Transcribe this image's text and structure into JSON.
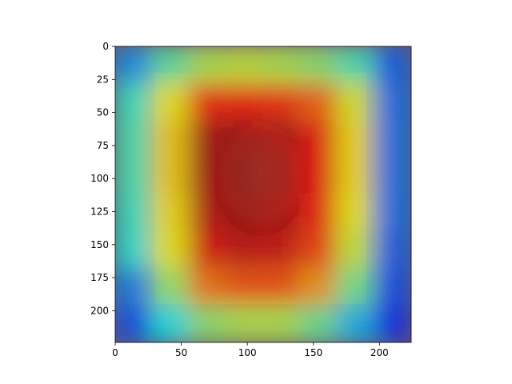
{
  "chart_data": {
    "type": "heatmap",
    "title": "",
    "xlabel": "",
    "ylabel": "",
    "xlim": [
      0,
      224
    ],
    "ylim": [
      224,
      0
    ],
    "x_ticks": [
      0,
      50,
      100,
      150,
      200
    ],
    "y_ticks": [
      0,
      25,
      50,
      75,
      100,
      125,
      150,
      175,
      200
    ],
    "x_tick_labels": [
      "0",
      "50",
      "100",
      "150",
      "200"
    ],
    "y_tick_labels": [
      "0",
      "25",
      "50",
      "75",
      "100",
      "125",
      "150",
      "175",
      "200"
    ],
    "grid": false,
    "colormap": "jet",
    "overlay": "attention heatmap over a portrait photograph of a smiling man",
    "activation_grid": [
      [
        0.28,
        0.46,
        0.56,
        0.58,
        0.56,
        0.52,
        0.44,
        0.22
      ],
      [
        0.42,
        0.62,
        0.85,
        0.86,
        0.84,
        0.78,
        0.6,
        0.24
      ],
      [
        0.44,
        0.66,
        0.96,
        0.98,
        0.96,
        0.88,
        0.64,
        0.24
      ],
      [
        0.44,
        0.66,
        0.96,
        1.0,
        0.98,
        0.88,
        0.64,
        0.24
      ],
      [
        0.42,
        0.64,
        0.94,
        0.98,
        0.96,
        0.86,
        0.62,
        0.24
      ],
      [
        0.4,
        0.62,
        0.9,
        0.93,
        0.92,
        0.82,
        0.58,
        0.22
      ],
      [
        0.26,
        0.52,
        0.76,
        0.8,
        0.8,
        0.72,
        0.48,
        0.2
      ],
      [
        0.2,
        0.38,
        0.52,
        0.56,
        0.56,
        0.48,
        0.32,
        0.16
      ]
    ]
  }
}
